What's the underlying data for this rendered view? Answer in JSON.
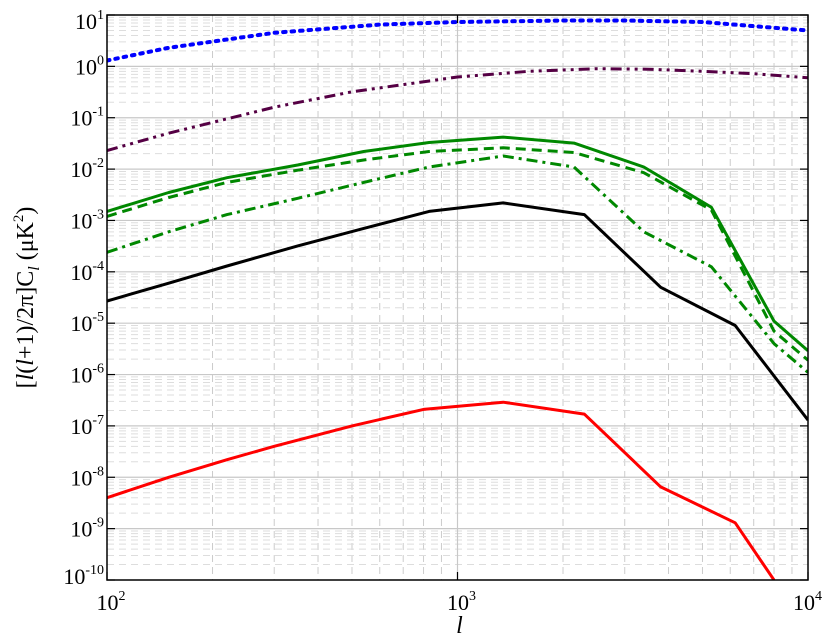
{
  "chart_data": {
    "type": "line",
    "x_scale": "log",
    "y_scale": "log",
    "xlim": [
      100,
      10000
    ],
    "ylim": [
      1e-10,
      10
    ],
    "grid": true,
    "xlabel": "l",
    "ylabel": "[l(l+1)/2π]C_l (μK²)",
    "ylabel_parts": {
      "bracket_open": "[",
      "l1": "l",
      "paren_open": "(",
      "l2": "l",
      "rest1": "+1)/2π]C",
      "sub": "l",
      "rest2": " (μK",
      "sup": "2",
      "close": ")"
    },
    "xticks": [
      {
        "base": "10",
        "exp": "2",
        "value": 100
      },
      {
        "base": "10",
        "exp": "3",
        "value": 1000
      },
      {
        "base": "10",
        "exp": "4",
        "value": 10000
      }
    ],
    "yticks": [
      {
        "base": "10",
        "exp": "1",
        "value": 10
      },
      {
        "base": "10",
        "exp": "0",
        "value": 1
      },
      {
        "base": "10",
        "exp": "-1",
        "value": 0.1
      },
      {
        "base": "10",
        "exp": "-2",
        "value": 0.01
      },
      {
        "base": "10",
        "exp": "-3",
        "value": 0.001
      },
      {
        "base": "10",
        "exp": "-4",
        "value": 0.0001
      },
      {
        "base": "10",
        "exp": "-5",
        "value": 1e-05
      },
      {
        "base": "10",
        "exp": "-6",
        "value": 1e-06
      },
      {
        "base": "10",
        "exp": "-7",
        "value": 1e-07
      },
      {
        "base": "10",
        "exp": "-8",
        "value": 1e-08
      },
      {
        "base": "10",
        "exp": "-9",
        "value": 1e-09
      },
      {
        "base": "10",
        "exp": "-10",
        "value": 1e-10
      }
    ],
    "series": [
      {
        "color": "#0000ff",
        "style": "dotted",
        "x": [
          100,
          150,
          300,
          600,
          1000,
          2000,
          3000,
          5000,
          10000
        ],
        "y": [
          1.3,
          2.3,
          4.5,
          6.5,
          7.3,
          7.8,
          7.8,
          7.3,
          5.0
        ]
      },
      {
        "color": "#550044",
        "style": "dashdotdot",
        "x": [
          100,
          150,
          300,
          500,
          1000,
          1600,
          2500,
          3500,
          5000,
          7000,
          10000
        ],
        "y": [
          0.023,
          0.05,
          0.16,
          0.32,
          0.62,
          0.8,
          0.9,
          0.88,
          0.8,
          0.72,
          0.6
        ]
      },
      {
        "color": "#008800",
        "style": "solid",
        "x": [
          100,
          150,
          220,
          350,
          540,
          830,
          1350,
          2150,
          3400,
          5300,
          8000,
          10000
        ],
        "y": [
          0.0015,
          0.0035,
          0.0068,
          0.012,
          0.022,
          0.033,
          0.042,
          0.032,
          0.011,
          0.0018,
          1.1e-05,
          2.9e-06
        ]
      },
      {
        "color": "#008800",
        "style": "dashed",
        "x": [
          100,
          150,
          220,
          350,
          540,
          830,
          1350,
          2150,
          3400,
          5300,
          8000,
          10000
        ],
        "y": [
          0.0012,
          0.0028,
          0.0055,
          0.0095,
          0.015,
          0.022,
          0.026,
          0.021,
          0.0085,
          0.0016,
          7e-06,
          1.9e-06
        ]
      },
      {
        "color": "#008800",
        "style": "dashdot",
        "x": [
          100,
          150,
          220,
          350,
          540,
          830,
          1350,
          2150,
          3400,
          5300,
          8000,
          10000
        ],
        "y": [
          0.00024,
          0.0006,
          0.0013,
          0.0027,
          0.0055,
          0.011,
          0.018,
          0.011,
          0.0006,
          0.000125,
          4e-06,
          1.1e-06
        ]
      },
      {
        "color": "#000000",
        "style": "solid",
        "x": [
          100,
          150,
          220,
          350,
          540,
          830,
          1350,
          2300,
          3800,
          6200,
          10000
        ],
        "y": [
          2.7e-05,
          6e-05,
          0.00013,
          0.00032,
          0.0007,
          0.0015,
          0.0022,
          0.0013,
          5e-05,
          9e-06,
          1.3e-07
        ]
      },
      {
        "color": "#ff0000",
        "style": "solid",
        "x": [
          100,
          150,
          220,
          300,
          500,
          800,
          1350,
          2300,
          3800,
          6200,
          8000
        ],
        "y": [
          4e-09,
          1e-08,
          2.2e-08,
          4e-08,
          1e-07,
          2.1e-07,
          2.9e-07,
          1.7e-07,
          6.5e-09,
          1.3e-09,
          1e-10
        ]
      }
    ]
  }
}
